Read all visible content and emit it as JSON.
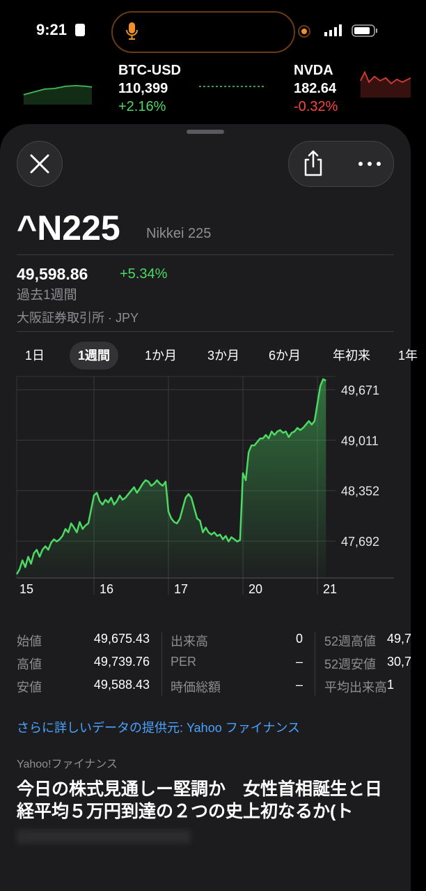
{
  "status_bar": {
    "time": "9:21"
  },
  "ticker_strip": [
    {
      "symbol": "BTC-USD",
      "price": "110,399",
      "change": "+2.16%"
    },
    {
      "symbol": "NVDA",
      "price": "182.64",
      "change": "-0.32%"
    }
  ],
  "header": {
    "symbol": "^N225",
    "name": "Nikkei 225",
    "price": "49,598.86",
    "change": "+5.34%",
    "period": "過去1週間",
    "exchange": "大阪証券取引所 · JPY"
  },
  "ranges": [
    "1日",
    "1週間",
    "1か月",
    "3か月",
    "6か月",
    "年初来",
    "1年"
  ],
  "selected_range": 1,
  "chart_data": {
    "type": "line",
    "categories": [
      "15",
      "16",
      "17",
      "20",
      "21"
    ],
    "values": [
      [
        47259,
        47323,
        47441,
        47351,
        47487,
        47396,
        47533,
        47578,
        47487,
        47578,
        47624,
        47578,
        47669,
        47715,
        47687,
        47715,
        47760,
        47851,
        47806,
        47924,
        47869,
        47806,
        47942,
        47851,
        47897,
        47924
      ],
      [
        48288,
        48324,
        48215,
        48169,
        48233,
        48197,
        48260,
        48169,
        48215,
        48288,
        48233,
        48260,
        48306,
        48352,
        48397,
        48324,
        48379,
        48442,
        48488,
        48470,
        48415,
        48442,
        48488,
        48442,
        48415,
        48470
      ],
      [
        48078,
        47987,
        47942,
        47924,
        47987,
        48124,
        48260,
        48306,
        48260,
        48124,
        47987,
        47960,
        47806,
        47869,
        47806,
        47778,
        47806,
        47760,
        47778,
        47715,
        47760,
        47687,
        47742,
        47715,
        47687,
        47706
      ],
      [
        48579,
        48488,
        48852,
        48943,
        48943,
        48989,
        49034,
        49034,
        49080,
        49034,
        49125,
        49080,
        49125,
        49143,
        49107,
        49125,
        49052,
        49107,
        49125,
        49171,
        49143,
        49171,
        49216,
        49262,
        49216,
        49262
      ],
      [
        49489,
        49717,
        49808,
        49789
      ]
    ],
    "color": "#4cd964",
    "ylim": [
      47210,
      49844
    ],
    "yticks": [
      {
        "value": 49671,
        "label": "49,671"
      },
      {
        "value": 49011,
        "label": "49,011"
      },
      {
        "value": 48352,
        "label": "48,352"
      },
      {
        "value": 47692,
        "label": "47,692"
      }
    ],
    "grid": true
  },
  "stats": [
    [
      [
        "始値",
        "49,675.43"
      ],
      [
        "出来高",
        "0"
      ],
      [
        "52週高値",
        "49,7"
      ]
    ],
    [
      [
        "高値",
        "49,739.76"
      ],
      [
        "PER",
        "–"
      ],
      [
        "52週安値",
        "30,7"
      ]
    ],
    [
      [
        "安値",
        "49,588.43"
      ],
      [
        "時価総額",
        "–"
      ],
      [
        "平均出来高",
        "1"
      ]
    ]
  ],
  "source_link": "さらに詳しいデータの提供元: Yahoo ファイナンス",
  "news": {
    "source": "Yahoo!ファイナンス",
    "headline": "今日の株式見通しー堅調か　女性首相誕生と日経平均５万円到達の２つの史上初なるか(ト"
  }
}
